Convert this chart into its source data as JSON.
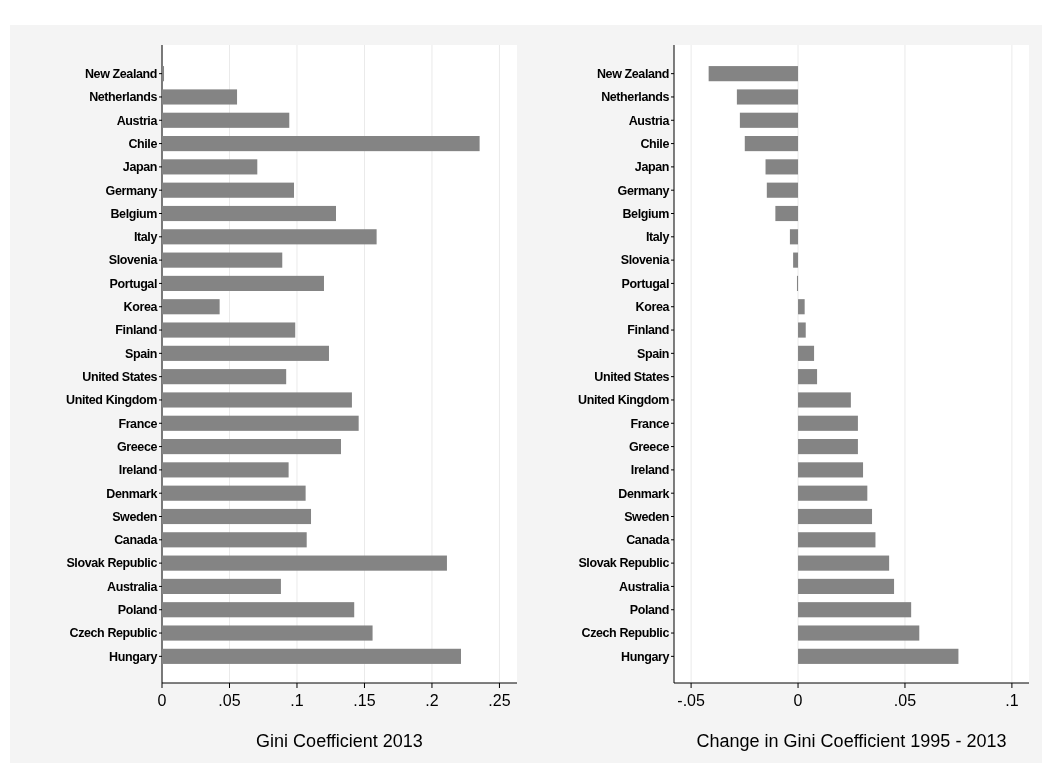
{
  "chart_data": [
    {
      "type": "bar",
      "orientation": "horizontal",
      "xlabel": "Gini Coefficient 2013",
      "color": "#848484",
      "categories": [
        "New Zealand",
        "Netherlands",
        "Austria",
        "Chile",
        "Japan",
        "Germany",
        "Belgium",
        "Italy",
        "Slovenia",
        "Portugal",
        "Korea",
        "Finland",
        "Spain",
        "United States",
        "United Kingdom",
        "France",
        "Greece",
        "Ireland",
        "Denmark",
        "Sweden",
        "Canada",
        "Slovak Republic",
        "Australia",
        "Poland",
        "Czech Republic",
        "Hungary"
      ],
      "values": [
        0.0015,
        0.0556,
        0.0943,
        0.2353,
        0.0706,
        0.0978,
        0.1289,
        0.159,
        0.0891,
        0.12,
        0.0427,
        0.0987,
        0.1237,
        0.092,
        0.1407,
        0.1457,
        0.1326,
        0.0938,
        0.1064,
        0.1104,
        0.1072,
        0.2111,
        0.0881,
        0.1424,
        0.156,
        0.2215
      ],
      "xlim": [
        0,
        0.263
      ],
      "xticks": [
        0,
        {
          "value": 0.05,
          "label": ".05"
        },
        {
          "value": 0.1,
          "label": ".1"
        },
        {
          "value": 0.15,
          "label": ".15"
        },
        {
          "value": 0.2,
          "label": ".2"
        },
        {
          "value": 0.25,
          "label": ".25"
        }
      ],
      "grid": "x"
    },
    {
      "type": "bar",
      "orientation": "horizontal",
      "xlabel": "Change in Gini Coefficient 1995 - 2013",
      "color": "#848484",
      "categories": [
        "New Zealand",
        "Netherlands",
        "Austria",
        "Chile",
        "Japan",
        "Germany",
        "Belgium",
        "Italy",
        "Slovenia",
        "Portugal",
        "Korea",
        "Finland",
        "Spain",
        "United States",
        "United Kingdom",
        "France",
        "Greece",
        "Ireland",
        "Denmark",
        "Sweden",
        "Canada",
        "Slovak Republic",
        "Australia",
        "Poland",
        "Czech Republic",
        "Hungary"
      ],
      "values": [
        -0.0418,
        -0.0286,
        -0.0272,
        -0.0249,
        -0.0152,
        -0.0146,
        -0.0106,
        -0.0038,
        -0.0023,
        -0.0005,
        0.0031,
        0.0036,
        0.0075,
        0.0089,
        0.0247,
        0.028,
        0.028,
        0.0304,
        0.0324,
        0.0346,
        0.0362,
        0.0426,
        0.0449,
        0.0529,
        0.0567,
        0.075
      ],
      "xlim": [
        -0.058,
        0.108
      ],
      "xticks": [
        {
          "value": -0.05,
          "label": "-.05"
        },
        0,
        {
          "value": 0.05,
          "label": ".05"
        },
        {
          "value": 0.1,
          "label": ".1"
        }
      ],
      "grid": "x"
    }
  ]
}
